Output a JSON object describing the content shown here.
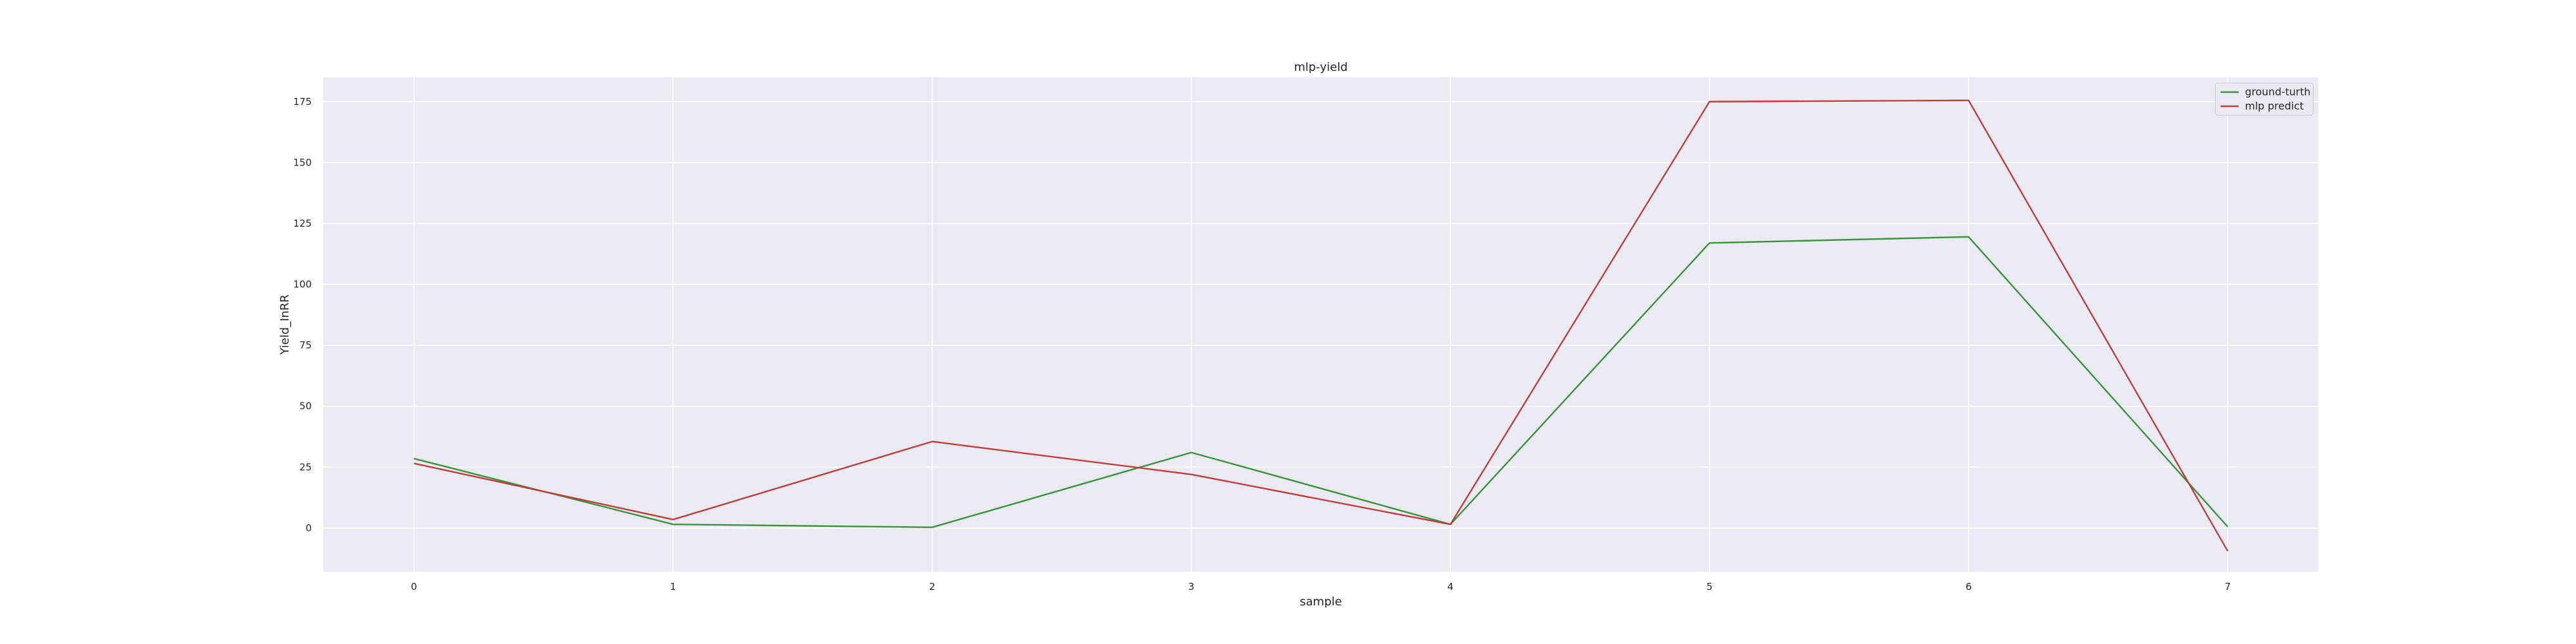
{
  "chart_data": {
    "type": "line",
    "title": "mlp-yield",
    "xlabel": "sample",
    "ylabel": "Yield_InRR",
    "x": [
      0,
      1,
      2,
      3,
      4,
      5,
      6,
      7
    ],
    "x_ticks": [
      0,
      1,
      2,
      3,
      4,
      5,
      6,
      7
    ],
    "y_ticks": [
      0,
      25,
      50,
      75,
      100,
      125,
      150,
      175
    ],
    "xlim": [
      -0.35,
      7.35
    ],
    "ylim": [
      -18,
      185
    ],
    "grid": true,
    "legend_position": "top-right",
    "background_color": "#eaeaf2",
    "grid_color": "#ffffff",
    "series": [
      {
        "name": "ground-turth",
        "color": "#3a923a",
        "values": [
          28.5,
          1.5,
          0.3,
          31,
          1.5,
          117,
          119.5,
          0.5
        ]
      },
      {
        "name": "mlp predict",
        "color": "#c03d3e",
        "values": [
          26.5,
          3.5,
          35.5,
          22,
          1.5,
          175,
          175.5,
          -9.5
        ]
      }
    ]
  }
}
